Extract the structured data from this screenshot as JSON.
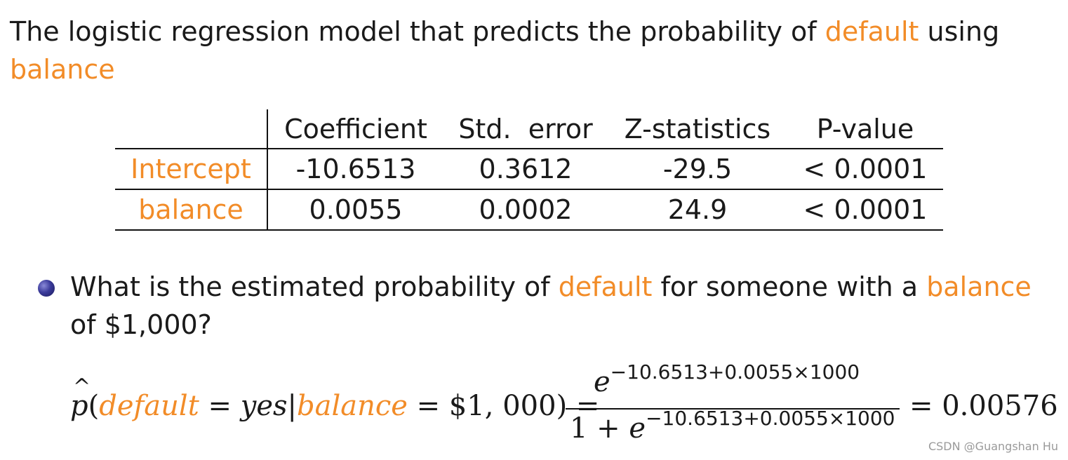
{
  "heading": {
    "before": "The logistic regression model that predicts the probability of ",
    "term_default": "default",
    "middle": " using",
    "term_balance": "balance"
  },
  "table": {
    "headers": [
      "",
      "Coefficient",
      "Std.  error",
      "Z-statistics",
      "P-value"
    ],
    "rows": [
      {
        "label": "Intercept",
        "coefficient": "-10.6513",
        "std_error": "0.3612",
        "z": "-29.5",
        "p": "< 0.0001"
      },
      {
        "label": "balance",
        "coefficient": "0.0055",
        "std_error": "0.0002",
        "z": "24.9",
        "p": "< 0.0001"
      }
    ]
  },
  "question": {
    "part1": "What is the estimated probability of ",
    "term_default": "default",
    "part2": " for someone with a ",
    "term_balance": "balance",
    "part3": " of $1,000?"
  },
  "formula": {
    "phat": "p",
    "open_paren": "(",
    "var_default": "default",
    "eq_yes": " = ",
    "yes": "yes",
    "bar": "|",
    "var_balance": "balance",
    "eq_amount": " = $1, 000) = ",
    "numerator_base": "e",
    "exponent": "−10.6513+0.0055×1000",
    "denominator_one": "1 + ",
    "denominator_base": "e",
    "result": "= 0.00576"
  },
  "watermark": "CSDN @Guangshan Hu",
  "colors": {
    "accent": "#f28c28",
    "text": "#1a1a1a"
  }
}
